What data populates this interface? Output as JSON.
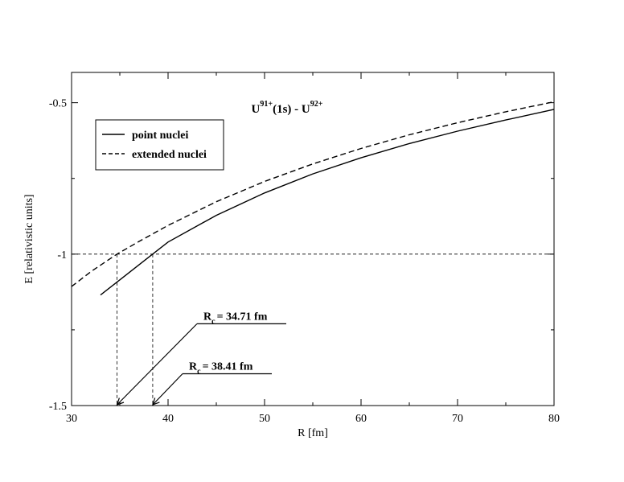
{
  "chart_data": {
    "type": "line",
    "title": {
      "parts": [
        {
          "text": "U",
          "sup": false
        },
        {
          "text": "91+",
          "sup": true
        },
        {
          "text": "(1s) - U",
          "sup": false
        },
        {
          "text": "92+",
          "sup": true
        }
      ]
    },
    "xlabel": "R [fm]",
    "ylabel": "E [relativistic units]",
    "xlim": [
      30,
      80
    ],
    "ylim": [
      -1.5,
      -0.4
    ],
    "xticks": [
      30,
      40,
      50,
      60,
      70,
      80
    ],
    "xtick_labels": [
      "30",
      "40",
      "50",
      "60",
      "70",
      "80"
    ],
    "yticks": [
      -1.5,
      -1,
      -0.5
    ],
    "ytick_labels": [
      "-1.5",
      "-1",
      "-0.5"
    ],
    "grid": false,
    "legend": {
      "placement": "top-left",
      "entries": [
        {
          "label": "point nuclei",
          "dash": "solid"
        },
        {
          "label": "extended nuclei",
          "dash": "dashed"
        }
      ]
    },
    "series": [
      {
        "name": "point nuclei",
        "dash": "solid",
        "x": [
          33,
          35,
          38,
          40,
          45,
          50,
          55,
          60,
          65,
          70,
          75,
          80
        ],
        "y": [
          -1.135,
          -1.085,
          -1.01,
          -0.96,
          -0.872,
          -0.798,
          -0.735,
          -0.682,
          -0.635,
          -0.594,
          -0.557,
          -0.522
        ]
      },
      {
        "name": "extended nuclei",
        "dash": "dashed",
        "x": [
          30,
          32,
          34.71,
          37,
          40,
          45,
          50,
          55,
          60,
          65,
          70,
          75,
          80
        ],
        "y": [
          -1.107,
          -1.058,
          -1.0,
          -0.958,
          -0.905,
          -0.827,
          -0.76,
          -0.702,
          -0.651,
          -0.606,
          -0.566,
          -0.53,
          -0.497
        ]
      }
    ],
    "reference_lines": {
      "horizontal_y": -1,
      "verticals": [
        34.71,
        38.41
      ]
    },
    "annotations": [
      {
        "main": "R",
        "sub": "c",
        "value": "= 34.71 fm",
        "target_x": 34.71,
        "label_x": 43,
        "label_y": -1.23
      },
      {
        "main": "R",
        "sub": "c",
        "value": "= 38.41 fm",
        "target_x": 38.41,
        "label_x": 41.5,
        "label_y": -1.395
      }
    ]
  }
}
